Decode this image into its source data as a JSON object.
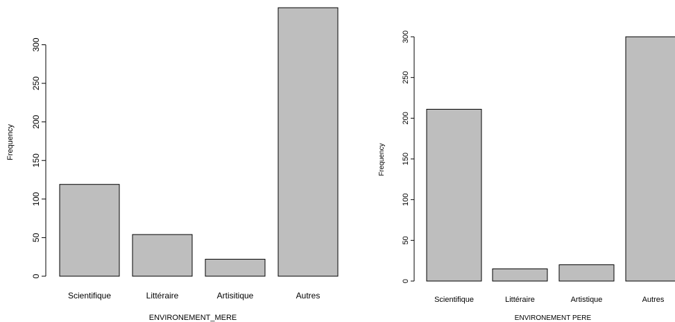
{
  "chart_data": [
    {
      "type": "bar",
      "categories": [
        "Scientifique",
        "Littéraire",
        "Artisitique",
        "Autres"
      ],
      "values": [
        119,
        54,
        22,
        348
      ],
      "title": "",
      "xlabel": "ENVIRONEMENT_MERE",
      "ylabel": "Frequency",
      "yticks": [
        0,
        50,
        100,
        150,
        200,
        250,
        300
      ],
      "ylim": [
        0,
        350
      ],
      "grid": false,
      "bar_color": "#bebebe"
    },
    {
      "type": "bar",
      "categories": [
        "Scientifique",
        "Littéraire",
        "Artistique",
        "Autres"
      ],
      "values": [
        211,
        15,
        20,
        300
      ],
      "title": "",
      "xlabel": "ENVIRONEMENT PERE",
      "ylabel": "Frequency",
      "yticks": [
        0,
        50,
        100,
        150,
        200,
        250,
        300
      ],
      "ylim": [
        0,
        300
      ],
      "grid": false,
      "bar_color": "#bebebe"
    }
  ]
}
